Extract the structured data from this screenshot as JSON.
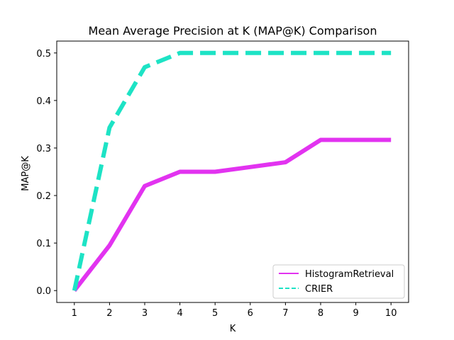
{
  "chart_data": {
    "type": "line",
    "title": "Mean Average Precision at K (MAP@K) Comparison",
    "xlabel": "K",
    "ylabel": "MAP@K",
    "x": [
      1,
      2,
      3,
      4,
      5,
      6,
      7,
      8,
      9,
      10
    ],
    "xlim": [
      0.5,
      10.5
    ],
    "ylim": [
      -0.025,
      0.525
    ],
    "xticks": [
      "1",
      "2",
      "3",
      "4",
      "5",
      "6",
      "7",
      "8",
      "9",
      "10"
    ],
    "yticks": [
      "0.0",
      "0.1",
      "0.2",
      "0.3",
      "0.4",
      "0.5"
    ],
    "ytick_values": [
      0.0,
      0.1,
      0.2,
      0.3,
      0.4,
      0.5
    ],
    "grid": false,
    "legend_position": "lower-right",
    "series": [
      {
        "name": "HistogramRetrieval",
        "color": "#e233f0",
        "style": "solid",
        "values": [
          0.0,
          0.095,
          0.22,
          0.25,
          0.25,
          0.26,
          0.27,
          0.317,
          0.317,
          0.317
        ]
      },
      {
        "name": "CRIER",
        "color": "#1de3c5",
        "style": "dashed",
        "values": [
          0.0,
          0.343,
          0.47,
          0.5,
          0.5,
          0.5,
          0.5,
          0.5,
          0.5,
          0.5
        ]
      }
    ]
  }
}
